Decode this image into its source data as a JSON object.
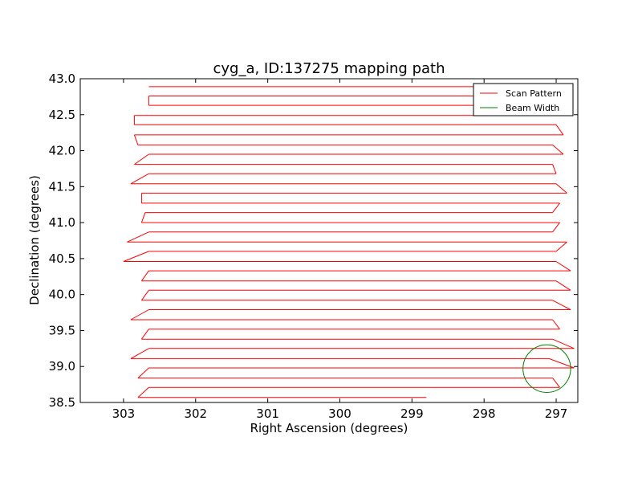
{
  "chart_data": {
    "type": "line",
    "title": "cyg_a, ID:137275 mapping path",
    "xlabel": "Right Ascension (degrees)",
    "ylabel": "Declination (degrees)",
    "xlim": [
      303.6,
      296.7
    ],
    "ylim": [
      38.5,
      43.0
    ],
    "x_reversed": true,
    "xticks": [
      303,
      302,
      301,
      300,
      299,
      298,
      297
    ],
    "xtick_labels": [
      "303",
      "302",
      "301",
      "300",
      "299",
      "298",
      "297"
    ],
    "yticks": [
      38.5,
      39.0,
      39.5,
      40.0,
      40.5,
      41.0,
      41.5,
      42.0,
      42.5,
      43.0
    ],
    "ytick_labels": [
      "38.5",
      "39.0",
      "39.5",
      "40.0",
      "40.5",
      "41.0",
      "41.5",
      "42.0",
      "42.5",
      "43.0"
    ],
    "grid": false,
    "legend_position": "top-right",
    "series": [
      {
        "name": "Scan Pattern",
        "color": "#ff0000",
        "scan_rows": [
          {
            "dec": 42.89,
            "ra_left": 302.65,
            "ra_right": 297.05
          },
          {
            "dec": 42.76,
            "ra_left": 302.65,
            "ra_right": 297.05
          },
          {
            "dec": 42.63,
            "ra_left": 302.65,
            "ra_right": 297.05
          },
          {
            "dec": 42.49,
            "ra_left": 302.85,
            "ra_right": 297.1
          },
          {
            "dec": 42.36,
            "ra_left": 302.85,
            "ra_right": 297.0
          },
          {
            "dec": 42.22,
            "ra_left": 302.85,
            "ra_right": 296.9
          },
          {
            "dec": 42.08,
            "ra_left": 302.8,
            "ra_right": 297.05
          },
          {
            "dec": 41.95,
            "ra_left": 302.65,
            "ra_right": 296.9
          },
          {
            "dec": 41.81,
            "ra_left": 302.85,
            "ra_right": 297.05
          },
          {
            "dec": 41.68,
            "ra_left": 302.65,
            "ra_right": 297.0
          },
          {
            "dec": 41.54,
            "ra_left": 302.9,
            "ra_right": 297.0
          },
          {
            "dec": 41.41,
            "ra_left": 302.75,
            "ra_right": 296.85
          },
          {
            "dec": 41.27,
            "ra_left": 302.75,
            "ra_right": 296.95
          },
          {
            "dec": 41.14,
            "ra_left": 302.7,
            "ra_right": 297.05
          },
          {
            "dec": 41.0,
            "ra_left": 302.75,
            "ra_right": 296.95
          },
          {
            "dec": 40.87,
            "ra_left": 302.65,
            "ra_right": 297.05
          },
          {
            "dec": 40.73,
            "ra_left": 302.95,
            "ra_right": 296.85
          },
          {
            "dec": 40.6,
            "ra_left": 302.65,
            "ra_right": 297.0
          },
          {
            "dec": 40.46,
            "ra_left": 303.0,
            "ra_right": 297.0
          },
          {
            "dec": 40.33,
            "ra_left": 302.65,
            "ra_right": 296.8
          },
          {
            "dec": 40.19,
            "ra_left": 302.75,
            "ra_right": 297.0
          },
          {
            "dec": 40.06,
            "ra_left": 302.65,
            "ra_right": 296.8
          },
          {
            "dec": 39.92,
            "ra_left": 302.75,
            "ra_right": 297.05
          },
          {
            "dec": 39.79,
            "ra_left": 302.65,
            "ra_right": 296.8
          },
          {
            "dec": 39.65,
            "ra_left": 302.9,
            "ra_right": 297.05
          },
          {
            "dec": 39.52,
            "ra_left": 302.65,
            "ra_right": 296.95
          },
          {
            "dec": 39.38,
            "ra_left": 302.75,
            "ra_right": 297.05
          },
          {
            "dec": 39.25,
            "ra_left": 302.65,
            "ra_right": 296.75
          },
          {
            "dec": 39.11,
            "ra_left": 302.9,
            "ra_right": 297.1
          },
          {
            "dec": 38.98,
            "ra_left": 302.65,
            "ra_right": 296.75
          },
          {
            "dec": 38.84,
            "ra_left": 302.8,
            "ra_right": 297.05
          },
          {
            "dec": 38.71,
            "ra_left": 302.65,
            "ra_right": 296.95
          },
          {
            "dec": 38.57,
            "ra_left": 302.8,
            "ra_right": 298.8
          }
        ]
      },
      {
        "name": "Beam Width",
        "color": "#008000",
        "circle": {
          "center_ra": 297.13,
          "center_dec": 38.97,
          "radius_deg": 0.33
        }
      }
    ]
  }
}
